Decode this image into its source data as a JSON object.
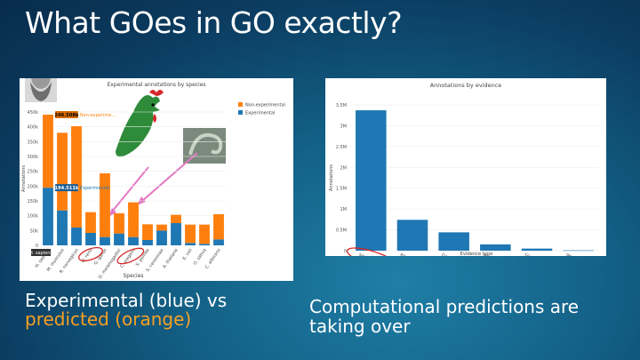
{
  "slide_title": "What GOes in GO exactly?",
  "captions": {
    "left_line1": "Experimental (blue) vs",
    "left_line2": "predicted (orange)",
    "right_line1": "Computational predictions are",
    "right_line2": "taking over"
  },
  "colors": {
    "experimental": "#1f77b4",
    "non_experimental": "#ff7f0e",
    "highlight": "#d62728",
    "arrow": "#e377c2"
  },
  "chart_data": [
    {
      "type": "bar",
      "stacked": true,
      "title": "Experimental annotations by species",
      "xlabel": "Species",
      "ylabel": "Annotations",
      "ylim": [
        0,
        450000
      ],
      "yticks": [
        "0",
        "50k",
        "100k",
        "150k",
        "200k",
        "250k",
        "300k",
        "350k",
        "400k",
        "450k"
      ],
      "categories": [
        "H. sapiens",
        "M. musculus",
        "R. norvegicus",
        "D. rerio",
        "G. gallus",
        "D. melanogaster",
        "C. elegans",
        "S. pombe",
        "S. cerevisiae",
        "A. thaliana",
        "E. coli",
        "O. sativa",
        "C. albicans"
      ],
      "series": [
        {
          "name": "Experimental",
          "values": [
            194511,
            118000,
            60000,
            42000,
            28000,
            40000,
            28000,
            18000,
            50000,
            75000,
            8000,
            5000,
            20000
          ]
        },
        {
          "name": "Non-experimental",
          "values": [
            246508,
            262000,
            342000,
            70000,
            215000,
            68000,
            117000,
            53000,
            20000,
            28000,
            62000,
            65000,
            85000
          ]
        }
      ],
      "tooltips": {
        "top": "246.508k",
        "top_label": "Non-experime...",
        "bottom": "194.511k",
        "bottom_label": "Experimental",
        "category": "H. sapiens"
      },
      "legend": {
        "placement": "top-right",
        "items": [
          "Non-experimental",
          "Experimental"
        ]
      },
      "annotation": "D. rerio and C. elegans circled and pointed to by arrows"
    },
    {
      "type": "bar",
      "title": "Annotations by evidence",
      "xlabel": "Evidence type",
      "ylabel": "Annotations",
      "ylim": [
        0,
        3500000
      ],
      "yticks": [
        "0",
        "0.5M",
        "1M",
        "1.5M",
        "2M",
        "2.5M",
        "3M",
        "3.5M"
      ],
      "categories": [
        "similarity evidence",
        "experimental evidence",
        "curator inference",
        "author statement",
        "combinatorial evidence",
        "genomic context evidence"
      ],
      "values": [
        3370000,
        740000,
        440000,
        150000,
        50000,
        8000
      ],
      "annotation": "similarity evidence circled"
    }
  ]
}
